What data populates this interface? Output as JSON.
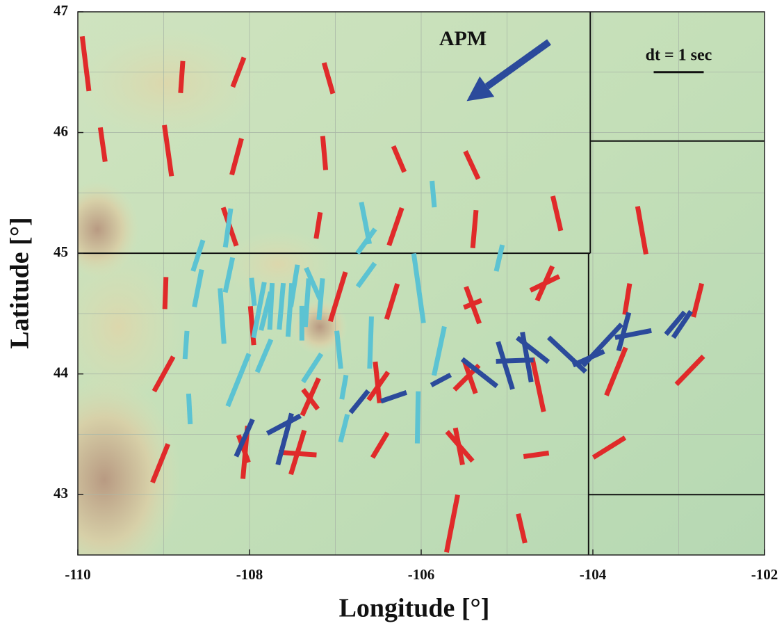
{
  "chart_data": {
    "type": "splitting-map",
    "xlabel": "Longitude [°]",
    "ylabel": "Latitude [°]",
    "xlim": [
      -110,
      -102
    ],
    "ylim": [
      42.5,
      47
    ],
    "xticks": [
      -110,
      -108,
      -106,
      -104,
      -102
    ],
    "yticks": [
      43,
      44,
      45,
      46,
      47
    ],
    "grid": true,
    "xgrid": [
      -109,
      -107,
      -105,
      -103
    ],
    "ygrid": [
      43.5,
      44.5,
      45.5,
      46.5
    ],
    "boundaries": [
      [
        [
          -110,
          45
        ],
        [
          -104.03,
          45
        ]
      ],
      [
        [
          -104.03,
          47
        ],
        [
          -104.03,
          45
        ]
      ],
      [
        [
          -104.05,
          45
        ],
        [
          -104.05,
          42.5
        ]
      ],
      [
        [
          -104.03,
          45.93
        ],
        [
          -102,
          45.93
        ]
      ],
      [
        [
          -104.05,
          43.0
        ],
        [
          -102,
          43.0
        ]
      ]
    ],
    "apm": {
      "label": "APM",
      "color": "#2b4a9b",
      "from": [
        -104.51,
        46.75
      ],
      "to": [
        -105.47,
        46.26
      ]
    },
    "scale": {
      "label": "dt = 1 sec",
      "dt": 1,
      "lon": -103.0,
      "lat": 46.5
    },
    "bar_sets": [
      {
        "color": "#e02a2a",
        "lon": [
          -109.91,
          -108.79,
          -108.13,
          -107.08,
          -109.71,
          -108.95,
          -108.15,
          -107.13,
          -106.26,
          -105.41,
          -104.42,
          -103.43,
          -108.23,
          -107.2,
          -106.3,
          -105.38,
          -108.98,
          -107.97,
          -106.97,
          -106.34,
          -105.4,
          -105.4,
          -104.56,
          -104.56,
          -103.6,
          -102.78,
          -109.0,
          -106.51,
          -106.5,
          -105.47,
          -105.43,
          -104.64,
          -103.73,
          -102.87,
          -107.29,
          -107.29,
          -108.05,
          -108.07,
          -107.44,
          -107.44,
          -106.48,
          -105.55,
          -105.56,
          -104.66,
          -103.81,
          -109.04,
          -105.64,
          -104.83
        ],
        "lat": [
          46.57,
          46.46,
          46.5,
          46.45,
          45.9,
          45.85,
          45.8,
          45.83,
          45.78,
          45.73,
          45.33,
          45.19,
          45.22,
          45.23,
          45.22,
          45.2,
          44.67,
          44.4,
          44.64,
          44.6,
          44.57,
          44.58,
          44.75,
          44.75,
          44.62,
          44.61,
          44.0,
          43.93,
          43.9,
          43.97,
          43.97,
          43.91,
          44.02,
          44.03,
          43.81,
          43.79,
          43.35,
          43.38,
          43.35,
          43.34,
          43.41,
          43.4,
          43.4,
          43.33,
          43.39,
          43.26,
          42.76,
          42.72
        ],
        "azimuth": [
          -7,
          4,
          21,
          -16,
          -8,
          -8,
          15,
          -5,
          -23,
          -25,
          -13,
          -10,
          -19,
          9,
          19,
          5,
          2,
          -5,
          17,
          17,
          -20,
          68,
          64,
          24,
          9,
          14,
          29,
          -6,
          35,
          45,
          -19,
          -12,
          22,
          44,
          24,
          -37,
          5,
          -20,
          17,
          -86,
          31,
          -41,
          -11,
          82,
          58,
          22,
          11,
          -13
        ],
        "dt": [
          1.1,
          0.64,
          0.63,
          0.64,
          0.69,
          1.03,
          0.75,
          0.68,
          0.56,
          0.61,
          0.71,
          0.97,
          0.81,
          0.53,
          0.79,
          0.76,
          0.64,
          0.78,
          1.03,
          0.74,
          0.78,
          0.38,
          0.64,
          0.75,
          0.63,
          0.69,
          0.79,
          0.83,
          0.68,
          0.69,
          0.67,
          1.1,
          1.03,
          0.78,
          0.81,
          0.49,
          1.06,
          0.58,
          0.92,
          0.76,
          0.58,
          0.78,
          0.75,
          0.51,
          0.75,
          0.83,
          1.17,
          0.6
        ]
      },
      {
        "color": "#5cc3d2",
        "lon": [
          -108.6,
          -108.6,
          -108.25,
          -108.24,
          -108.32,
          -107.96,
          -107.89,
          -107.81,
          -107.75,
          -107.63,
          -107.53,
          -107.48,
          -107.39,
          -107.26,
          -107.33,
          -107.17,
          -108.74,
          -108.13,
          -107.83,
          -107.27,
          -106.96,
          -106.9,
          -106.9,
          -108.7,
          -106.65,
          -106.64,
          -106.64,
          -106.59,
          -106.03,
          -105.86,
          -105.09,
          -105.79,
          -106.04
        ],
        "lat": [
          44.98,
          44.71,
          45.21,
          44.82,
          44.48,
          44.68,
          44.53,
          44.52,
          44.56,
          44.56,
          44.53,
          44.73,
          44.42,
          44.75,
          44.59,
          44.62,
          44.24,
          43.95,
          44.15,
          44.05,
          44.2,
          43.89,
          43.55,
          43.71,
          45.25,
          45.1,
          44.82,
          44.26,
          44.71,
          45.49,
          44.96,
          44.19,
          43.64
        ],
        "azimuth": [
          18,
          11,
          8,
          12,
          -4,
          -6,
          11,
          14,
          3,
          5,
          4,
          9,
          0,
          -24,
          4,
          5,
          4,
          22,
          23,
          33,
          -6,
          10,
          14,
          -3,
          -11,
          36,
          36,
          2,
          -8,
          -5,
          13,
          12,
          1
        ],
        "dt": [
          0.65,
          0.76,
          0.78,
          0.71,
          1.11,
          0.56,
          1.13,
          0.79,
          0.93,
          0.93,
          1.07,
          0.85,
          0.69,
          0.68,
          0.97,
          0.83,
          0.56,
          1.13,
          0.71,
          0.67,
          0.76,
          0.49,
          0.57,
          0.61,
          0.85,
          0.6,
          0.58,
          1.04,
          1.4,
          0.53,
          0.54,
          1.0,
          1.04
        ]
      },
      {
        "color": "#2b4a9b",
        "lon": [
          -108.06,
          -107.6,
          -107.59,
          -106.72,
          -106.32,
          -105.77,
          -105.32,
          -104.91,
          -105.02,
          -104.77,
          -104.7,
          -104.3,
          -104.05,
          -103.89,
          -103.64,
          -103.53,
          -103.04,
          -102.96
        ],
        "lat": [
          43.47,
          43.58,
          43.46,
          43.77,
          43.81,
          43.95,
          44.01,
          44.11,
          44.07,
          44.14,
          44.2,
          44.16,
          44.13,
          44.24,
          44.35,
          44.33,
          44.42,
          44.41
        ],
        "azimuth": [
          24,
          62,
          15,
          39,
          71,
          62,
          -52,
          88,
          -17,
          -10,
          -52,
          -47,
          66,
          43,
          15,
          79,
          40,
          34
        ],
        "dt": [
          0.81,
          0.75,
          1.06,
          0.56,
          0.54,
          0.44,
          0.88,
          0.75,
          0.99,
          1.01,
          0.79,
          1.01,
          0.68,
          1.13,
          0.79,
          0.74,
          0.58,
          0.63
        ]
      }
    ]
  }
}
